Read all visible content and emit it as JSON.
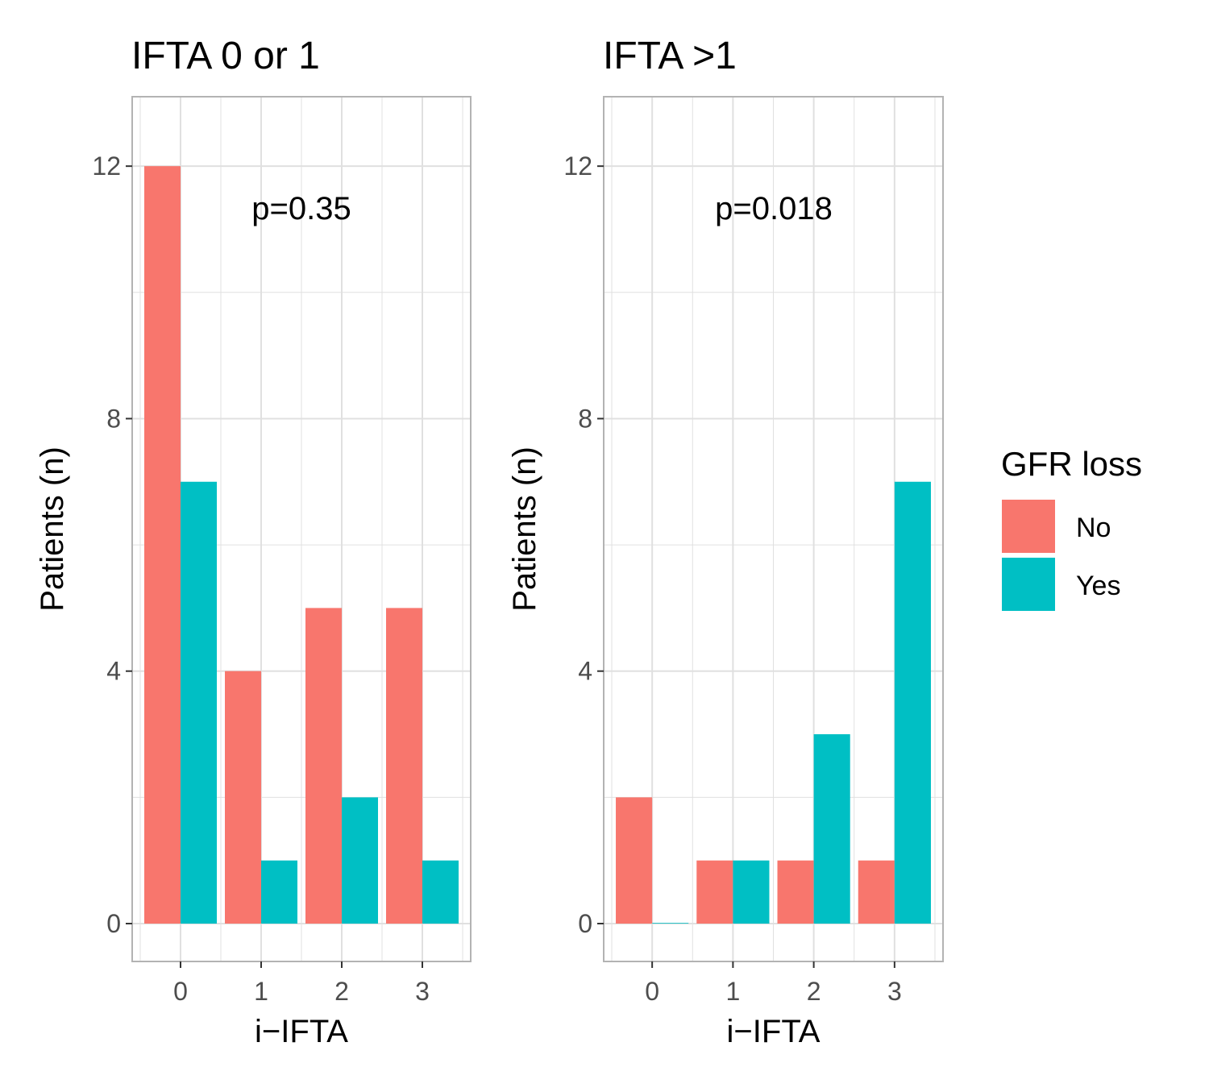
{
  "chart_data": [
    {
      "type": "bar",
      "title": "IFTA 0 or 1",
      "xlabel": "i−IFTA",
      "ylabel": "Patients (n)",
      "categories": [
        "0",
        "1",
        "2",
        "3"
      ],
      "ylim": [
        -0.6,
        13.1
      ],
      "yticks": [
        0,
        4,
        8,
        12
      ],
      "yticklabels": [
        "0",
        "4",
        "8",
        "12"
      ],
      "series": [
        {
          "name": "No",
          "values": [
            12,
            4,
            5,
            5
          ]
        },
        {
          "name": "Yes",
          "values": [
            7,
            1,
            2,
            1
          ]
        }
      ],
      "annotation": "p=0.35"
    },
    {
      "type": "bar",
      "title": "IFTA >1",
      "xlabel": "i−IFTA",
      "ylabel": "Patients (n)",
      "categories": [
        "0",
        "1",
        "2",
        "3"
      ],
      "ylim": [
        -0.6,
        13.1
      ],
      "yticks": [
        0,
        4,
        8,
        12
      ],
      "yticklabels": [
        "0",
        "4",
        "8",
        "12"
      ],
      "series": [
        {
          "name": "No",
          "values": [
            2,
            1,
            1,
            1
          ]
        },
        {
          "name": "Yes",
          "values": [
            0,
            1,
            3,
            7
          ]
        }
      ],
      "annotation": "p=0.018"
    }
  ],
  "legend": {
    "title": "GFR loss",
    "items": [
      {
        "label": "No",
        "color": "#F8766D"
      },
      {
        "label": "Yes",
        "color": "#00BFC4"
      }
    ]
  },
  "colors": {
    "No": "#F8766D",
    "Yes": "#00BFC4",
    "grid": "#e0e0e0",
    "border": "#b3b3b3"
  }
}
